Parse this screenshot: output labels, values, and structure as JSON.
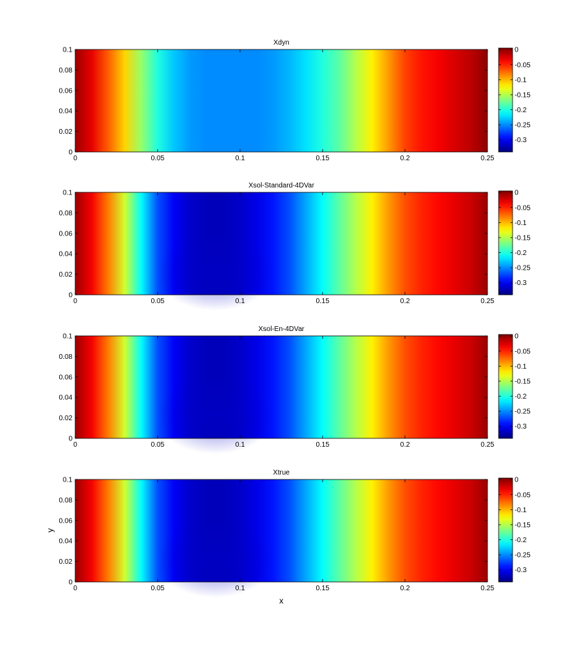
{
  "chart_data": {
    "type": "heatmap",
    "colormap": "jet",
    "xlabel": "x",
    "ylabel": "y",
    "xlim": [
      0,
      0.25
    ],
    "ylim": [
      0,
      0.1
    ],
    "clim": [
      -0.34,
      0.005
    ],
    "x_ticks": [
      "0",
      "0.05",
      "0.1",
      "0.15",
      "0.2",
      "0.25"
    ],
    "y_ticks": [
      "0",
      "0.02",
      "0.04",
      "0.06",
      "0.08",
      "0.1"
    ],
    "colorbar_ticks": [
      "0",
      "-0.05",
      "-0.1",
      "-0.15",
      "-0.2",
      "-0.25",
      "-0.3"
    ],
    "panels": [
      {
        "title": "Xdyn",
        "x": [
          0,
          0.01,
          0.02,
          0.03,
          0.04,
          0.05,
          0.06,
          0.07,
          0.08,
          0.09,
          0.1,
          0.11,
          0.12,
          0.13,
          0.14,
          0.15,
          0.16,
          0.17,
          0.18,
          0.19,
          0.2,
          0.21,
          0.22,
          0.23,
          0.24,
          0.25
        ],
        "values": [
          -0.005,
          -0.03,
          -0.07,
          -0.11,
          -0.16,
          -0.2,
          -0.23,
          -0.245,
          -0.25,
          -0.25,
          -0.25,
          -0.25,
          -0.245,
          -0.235,
          -0.22,
          -0.2,
          -0.18,
          -0.15,
          -0.12,
          -0.09,
          -0.06,
          -0.045,
          -0.035,
          -0.025,
          -0.015,
          0.0
        ]
      },
      {
        "title": "Xsol-Standard-4DVar",
        "x": [
          0,
          0.01,
          0.02,
          0.03,
          0.04,
          0.05,
          0.06,
          0.07,
          0.08,
          0.09,
          0.1,
          0.11,
          0.12,
          0.13,
          0.14,
          0.15,
          0.16,
          0.17,
          0.18,
          0.19,
          0.2,
          0.21,
          0.22,
          0.23,
          0.24,
          0.25
        ],
        "values": [
          -0.005,
          -0.035,
          -0.08,
          -0.14,
          -0.21,
          -0.27,
          -0.3,
          -0.315,
          -0.32,
          -0.32,
          -0.315,
          -0.305,
          -0.29,
          -0.27,
          -0.24,
          -0.21,
          -0.18,
          -0.15,
          -0.12,
          -0.09,
          -0.065,
          -0.05,
          -0.04,
          -0.03,
          -0.02,
          -0.005
        ]
      },
      {
        "title": "Xsol-En-4DVar",
        "x": [
          0,
          0.01,
          0.02,
          0.03,
          0.04,
          0.05,
          0.06,
          0.07,
          0.08,
          0.09,
          0.1,
          0.11,
          0.12,
          0.13,
          0.14,
          0.15,
          0.16,
          0.17,
          0.18,
          0.19,
          0.2,
          0.21,
          0.22,
          0.23,
          0.24,
          0.25
        ],
        "values": [
          -0.005,
          -0.035,
          -0.08,
          -0.14,
          -0.21,
          -0.27,
          -0.3,
          -0.315,
          -0.32,
          -0.32,
          -0.315,
          -0.305,
          -0.29,
          -0.27,
          -0.24,
          -0.21,
          -0.18,
          -0.15,
          -0.12,
          -0.09,
          -0.065,
          -0.05,
          -0.04,
          -0.03,
          -0.02,
          -0.005
        ]
      },
      {
        "title": "Xtrue",
        "x": [
          0,
          0.01,
          0.02,
          0.03,
          0.04,
          0.05,
          0.06,
          0.07,
          0.08,
          0.09,
          0.1,
          0.11,
          0.12,
          0.13,
          0.14,
          0.15,
          0.16,
          0.17,
          0.18,
          0.19,
          0.2,
          0.21,
          0.22,
          0.23,
          0.24,
          0.25
        ],
        "values": [
          -0.005,
          -0.035,
          -0.08,
          -0.14,
          -0.21,
          -0.27,
          -0.3,
          -0.315,
          -0.32,
          -0.32,
          -0.315,
          -0.305,
          -0.29,
          -0.27,
          -0.24,
          -0.21,
          -0.18,
          -0.15,
          -0.12,
          -0.09,
          -0.065,
          -0.05,
          -0.04,
          -0.03,
          -0.02,
          -0.005
        ]
      }
    ]
  }
}
